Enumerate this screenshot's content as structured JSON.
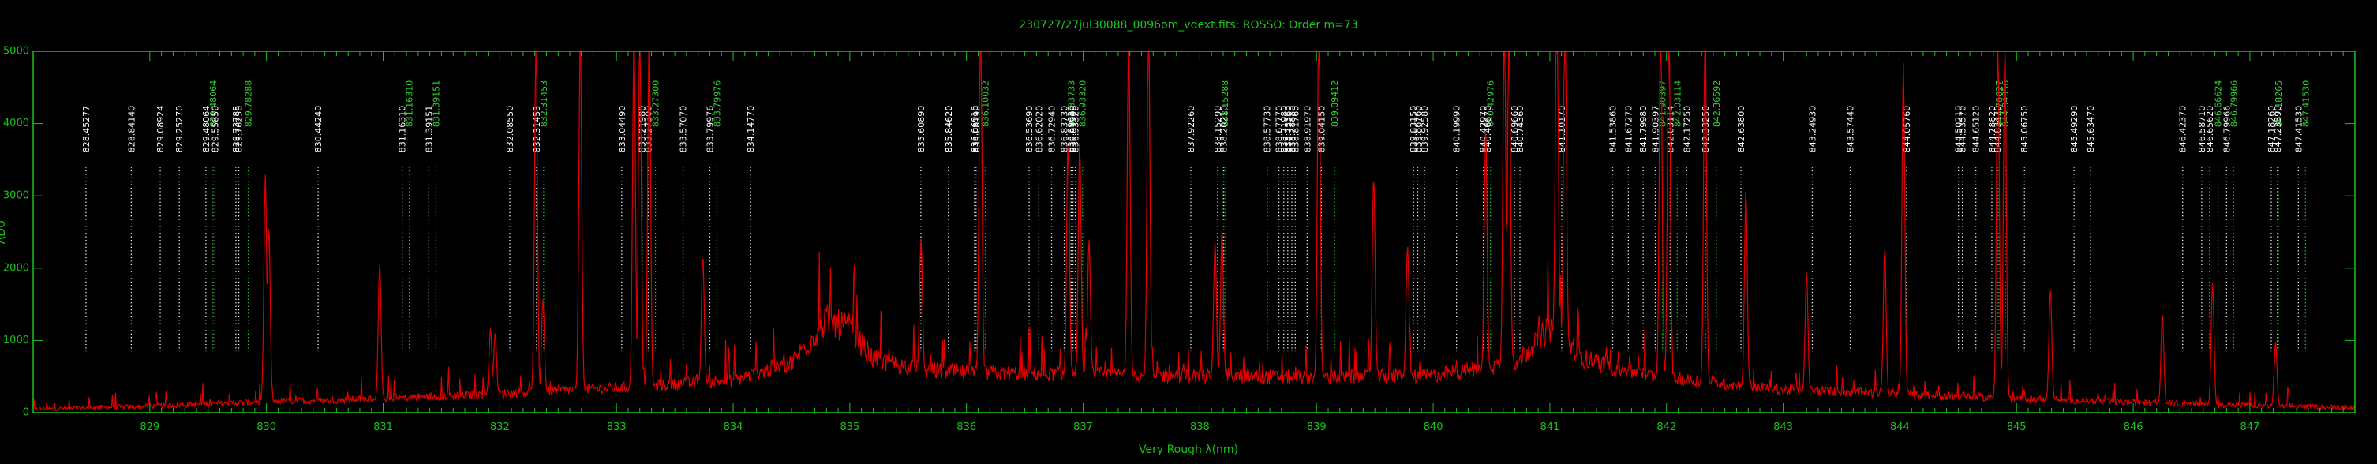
{
  "chart_data": {
    "type": "line",
    "title": "230727/27jul30088_0096om_vdext.fits: ROSSO: Order m=73",
    "xlabel": "Very Rough λ(nm)",
    "ylabel": "ADU",
    "xlim": [
      828.0,
      847.9
    ],
    "ylim": [
      0,
      5000
    ],
    "x_ticks": [
      829,
      830,
      831,
      832,
      833,
      834,
      835,
      836,
      837,
      838,
      839,
      840,
      841,
      842,
      843,
      844,
      845,
      846,
      847
    ],
    "y_ticks": [
      0,
      1000,
      2000,
      3000,
      4000,
      5000
    ],
    "grid": false,
    "colors": {
      "spectrum": "#e00000",
      "axes": "#18c418",
      "line_ids": "#ffffff",
      "line_ids_alt": "#2fd62f"
    },
    "continuum": [
      [
        828.0,
        40
      ],
      [
        829.0,
        80
      ],
      [
        830.0,
        140
      ],
      [
        831.0,
        180
      ],
      [
        832.0,
        250
      ],
      [
        833.0,
        320
      ],
      [
        834.0,
        420
      ],
      [
        834.5,
        650
      ],
      [
        834.8,
        1200
      ],
      [
        835.0,
        1100
      ],
      [
        835.2,
        700
      ],
      [
        835.6,
        560
      ],
      [
        836.0,
        520
      ],
      [
        837.0,
        500
      ],
      [
        838.0,
        480
      ],
      [
        839.0,
        460
      ],
      [
        840.0,
        480
      ],
      [
        840.7,
        650
      ],
      [
        841.0,
        1100
      ],
      [
        841.3,
        700
      ],
      [
        841.6,
        560
      ],
      [
        842.0,
        450
      ],
      [
        843.0,
        300
      ],
      [
        844.0,
        240
      ],
      [
        845.0,
        180
      ],
      [
        846.0,
        130
      ],
      [
        847.0,
        90
      ],
      [
        847.9,
        60
      ]
    ],
    "emission_lines": [
      [
        829.99,
        3150
      ],
      [
        830.02,
        2450
      ],
      [
        830.97,
        1900
      ],
      [
        831.92,
        930
      ],
      [
        831.96,
        850
      ],
      [
        832.31,
        5000
      ],
      [
        832.37,
        1300
      ],
      [
        832.69,
        5000
      ],
      [
        833.15,
        5000
      ],
      [
        833.2,
        5000
      ],
      [
        833.28,
        5000
      ],
      [
        833.74,
        1800
      ],
      [
        835.61,
        1850
      ],
      [
        836.12,
        5000
      ],
      [
        836.87,
        3250
      ],
      [
        836.97,
        3250
      ],
      [
        837.05,
        1900
      ],
      [
        837.39,
        5000
      ],
      [
        837.56,
        5000
      ],
      [
        838.13,
        1900
      ],
      [
        838.19,
        2050
      ],
      [
        839.02,
        5000
      ],
      [
        839.49,
        2800
      ],
      [
        839.78,
        1850
      ],
      [
        840.45,
        3350
      ],
      [
        840.61,
        5000
      ],
      [
        840.65,
        5000
      ],
      [
        841.06,
        5000
      ],
      [
        841.13,
        5000
      ],
      [
        841.95,
        5000
      ],
      [
        842.02,
        5000
      ],
      [
        842.33,
        5000
      ],
      [
        842.68,
        2750
      ],
      [
        843.2,
        1650
      ],
      [
        843.87,
        2050
      ],
      [
        844.03,
        4600
      ],
      [
        844.84,
        5000
      ],
      [
        844.9,
        5000
      ],
      [
        845.29,
        1550
      ],
      [
        846.25,
        1250
      ],
      [
        846.68,
        1700
      ],
      [
        847.22,
        900
      ]
    ],
    "line_ids": [
      {
        "wl": 828.45277,
        "label": "828.45277",
        "color": "white"
      },
      {
        "wl": 828.8414,
        "label": "828.84140",
        "color": "white"
      },
      {
        "wl": 829.08924,
        "label": "829.08924",
        "color": "white"
      },
      {
        "wl": 829.2527,
        "label": "829.25270",
        "color": "white"
      },
      {
        "wl": 829.48064,
        "label": "829.48064",
        "color": "white"
      },
      {
        "wl": 829.48064,
        "label": "829.48064",
        "color": "green"
      },
      {
        "wl": 829.5585,
        "label": "829.55850",
        "color": "white"
      },
      {
        "wl": 829.73788,
        "label": "829.73788",
        "color": "white"
      },
      {
        "wl": 829.7625,
        "label": "829.76250",
        "color": "white"
      },
      {
        "wl": 829.78288,
        "label": "829.78288",
        "color": "green"
      },
      {
        "wl": 830.4424,
        "label": "830.44240",
        "color": "white"
      },
      {
        "wl": 831.1631,
        "label": "831.16310",
        "color": "white"
      },
      {
        "wl": 831.1631,
        "label": "831.16310",
        "color": "green"
      },
      {
        "wl": 831.39151,
        "label": "831.39151",
        "color": "white"
      },
      {
        "wl": 831.39151,
        "label": "831.39151",
        "color": "green"
      },
      {
        "wl": 832.0855,
        "label": "832.08550",
        "color": "white"
      },
      {
        "wl": 832.31453,
        "label": "832.31453",
        "color": "white"
      },
      {
        "wl": 832.31453,
        "label": "832.31453",
        "color": "green"
      },
      {
        "wl": 833.0449,
        "label": "833.04490",
        "color": "white"
      },
      {
        "wl": 833.2198,
        "label": "833.21980",
        "color": "white"
      },
      {
        "wl": 833.273,
        "label": "833.27300",
        "color": "white"
      },
      {
        "wl": 833.273,
        "label": "833.27300",
        "color": "green"
      },
      {
        "wl": 833.5707,
        "label": "833.57070",
        "color": "white"
      },
      {
        "wl": 833.79976,
        "label": "833.79976",
        "color": "white"
      },
      {
        "wl": 833.79976,
        "label": "833.79976",
        "color": "green"
      },
      {
        "wl": 834.1477,
        "label": "834.14770",
        "color": "white"
      },
      {
        "wl": 835.6089,
        "label": "835.60890",
        "color": "white"
      },
      {
        "wl": 835.8462,
        "label": "835.84620",
        "color": "white"
      },
      {
        "wl": 835.8462,
        "label": "835.84620",
        "color": "white"
      },
      {
        "wl": 836.0691,
        "label": "836.06910",
        "color": "white"
      },
      {
        "wl": 836.0819,
        "label": "836.08190",
        "color": "white"
      },
      {
        "wl": 836.10032,
        "label": "836.10032",
        "color": "green"
      },
      {
        "wl": 836.5369,
        "label": "836.53690",
        "color": "white"
      },
      {
        "wl": 836.6202,
        "label": "836.62020",
        "color": "white"
      },
      {
        "wl": 836.7294,
        "label": "836.72940",
        "color": "white"
      },
      {
        "wl": 836.8373,
        "label": "836.83730",
        "color": "white"
      },
      {
        "wl": 836.8373,
        "label": "836.83733",
        "color": "green"
      },
      {
        "wl": 836.8962,
        "label": "836.89620",
        "color": "white"
      },
      {
        "wl": 836.913,
        "label": "836.91300",
        "color": "white"
      },
      {
        "wl": 836.9332,
        "label": "836.93320",
        "color": "white"
      },
      {
        "wl": 836.9332,
        "label": "836.93320",
        "color": "green"
      },
      {
        "wl": 837.9226,
        "label": "837.92260",
        "color": "white"
      },
      {
        "wl": 838.1529,
        "label": "838.15290",
        "color": "white"
      },
      {
        "wl": 838.1529,
        "label": "838.15288",
        "color": "green"
      },
      {
        "wl": 838.2021,
        "label": "838.20210",
        "color": "white"
      },
      {
        "wl": 838.5773,
        "label": "838.57730",
        "color": "white"
      },
      {
        "wl": 838.6777,
        "label": "838.67770",
        "color": "white"
      },
      {
        "wl": 838.7198,
        "label": "838.71980",
        "color": "white"
      },
      {
        "wl": 838.7536,
        "label": "838.75360",
        "color": "white"
      },
      {
        "wl": 838.7888,
        "label": "838.78880",
        "color": "white"
      },
      {
        "wl": 838.8176,
        "label": "838.81760",
        "color": "white"
      },
      {
        "wl": 838.9197,
        "label": "838.91970",
        "color": "white"
      },
      {
        "wl": 839.0415,
        "label": "839.04150",
        "color": "white"
      },
      {
        "wl": 839.09412,
        "label": "839.09412",
        "color": "green"
      },
      {
        "wl": 839.8315,
        "label": "839.83150",
        "color": "white"
      },
      {
        "wl": 839.8676,
        "label": "839.86760",
        "color": "white"
      },
      {
        "wl": 839.9258,
        "label": "839.92580",
        "color": "white"
      },
      {
        "wl": 840.1999,
        "label": "840.19990",
        "color": "white"
      },
      {
        "wl": 840.4297,
        "label": "840.42970",
        "color": "white"
      },
      {
        "wl": 840.42976,
        "label": "840.42976",
        "color": "green"
      },
      {
        "wl": 840.4667,
        "label": "840.46670",
        "color": "white"
      },
      {
        "wl": 840.6966,
        "label": "840.69660",
        "color": "white"
      },
      {
        "wl": 840.7436,
        "label": "840.74360",
        "color": "white"
      },
      {
        "wl": 841.1017,
        "label": "841.10170",
        "color": "white"
      },
      {
        "wl": 841.5386,
        "label": "841.53860",
        "color": "white"
      },
      {
        "wl": 841.6727,
        "label": "841.67270",
        "color": "white"
      },
      {
        "wl": 841.7998,
        "label": "841.79980",
        "color": "white"
      },
      {
        "wl": 841.90397,
        "label": "841.90397",
        "color": "white"
      },
      {
        "wl": 841.90397,
        "label": "841.90397",
        "color": "green"
      },
      {
        "wl": 842.0311,
        "label": "842.03114",
        "color": "white"
      },
      {
        "wl": 842.0311,
        "label": "842.03114",
        "color": "green"
      },
      {
        "wl": 842.1725,
        "label": "842.17250",
        "color": "white"
      },
      {
        "wl": 842.3325,
        "label": "842.33250",
        "color": "white"
      },
      {
        "wl": 842.36592,
        "label": "842.36592",
        "color": "green"
      },
      {
        "wl": 842.638,
        "label": "842.63800",
        "color": "white"
      },
      {
        "wl": 843.2493,
        "label": "843.24930",
        "color": "white"
      },
      {
        "wl": 843.5744,
        "label": "843.57440",
        "color": "white"
      },
      {
        "wl": 844.0576,
        "label": "844.05760",
        "color": "white"
      },
      {
        "wl": 844.5021,
        "label": "844.50210",
        "color": "white"
      },
      {
        "wl": 844.5357,
        "label": "844.53570",
        "color": "white"
      },
      {
        "wl": 844.6512,
        "label": "844.65120",
        "color": "white"
      },
      {
        "wl": 844.7882,
        "label": "844.78820",
        "color": "white"
      },
      {
        "wl": 844.78827,
        "label": "844.78827",
        "color": "green"
      },
      {
        "wl": 844.8347,
        "label": "844.83470",
        "color": "white"
      },
      {
        "wl": 844.84356,
        "label": "844.84356",
        "color": "green"
      },
      {
        "wl": 845.0675,
        "label": "845.06750",
        "color": "white"
      },
      {
        "wl": 845.4929,
        "label": "845.49290",
        "color": "white"
      },
      {
        "wl": 845.6347,
        "label": "845.63470",
        "color": "white"
      },
      {
        "wl": 846.4237,
        "label": "846.42370",
        "color": "white"
      },
      {
        "wl": 846.5871,
        "label": "846.58710",
        "color": "white"
      },
      {
        "wl": 846.6562,
        "label": "846.65620",
        "color": "white"
      },
      {
        "wl": 846.66624,
        "label": "846.66624",
        "color": "green"
      },
      {
        "wl": 846.79966,
        "label": "846.79966",
        "color": "white"
      },
      {
        "wl": 846.79966,
        "label": "846.79966",
        "color": "green"
      },
      {
        "wl": 847.1826,
        "label": "847.18260",
        "color": "white"
      },
      {
        "wl": 847.18265,
        "label": "847.18265",
        "color": "green"
      },
      {
        "wl": 847.2359,
        "label": "847.23590",
        "color": "white"
      },
      {
        "wl": 847.4153,
        "label": "847.41530",
        "color": "white"
      },
      {
        "wl": 847.4153,
        "label": "847.41530",
        "color": "green"
      }
    ]
  }
}
